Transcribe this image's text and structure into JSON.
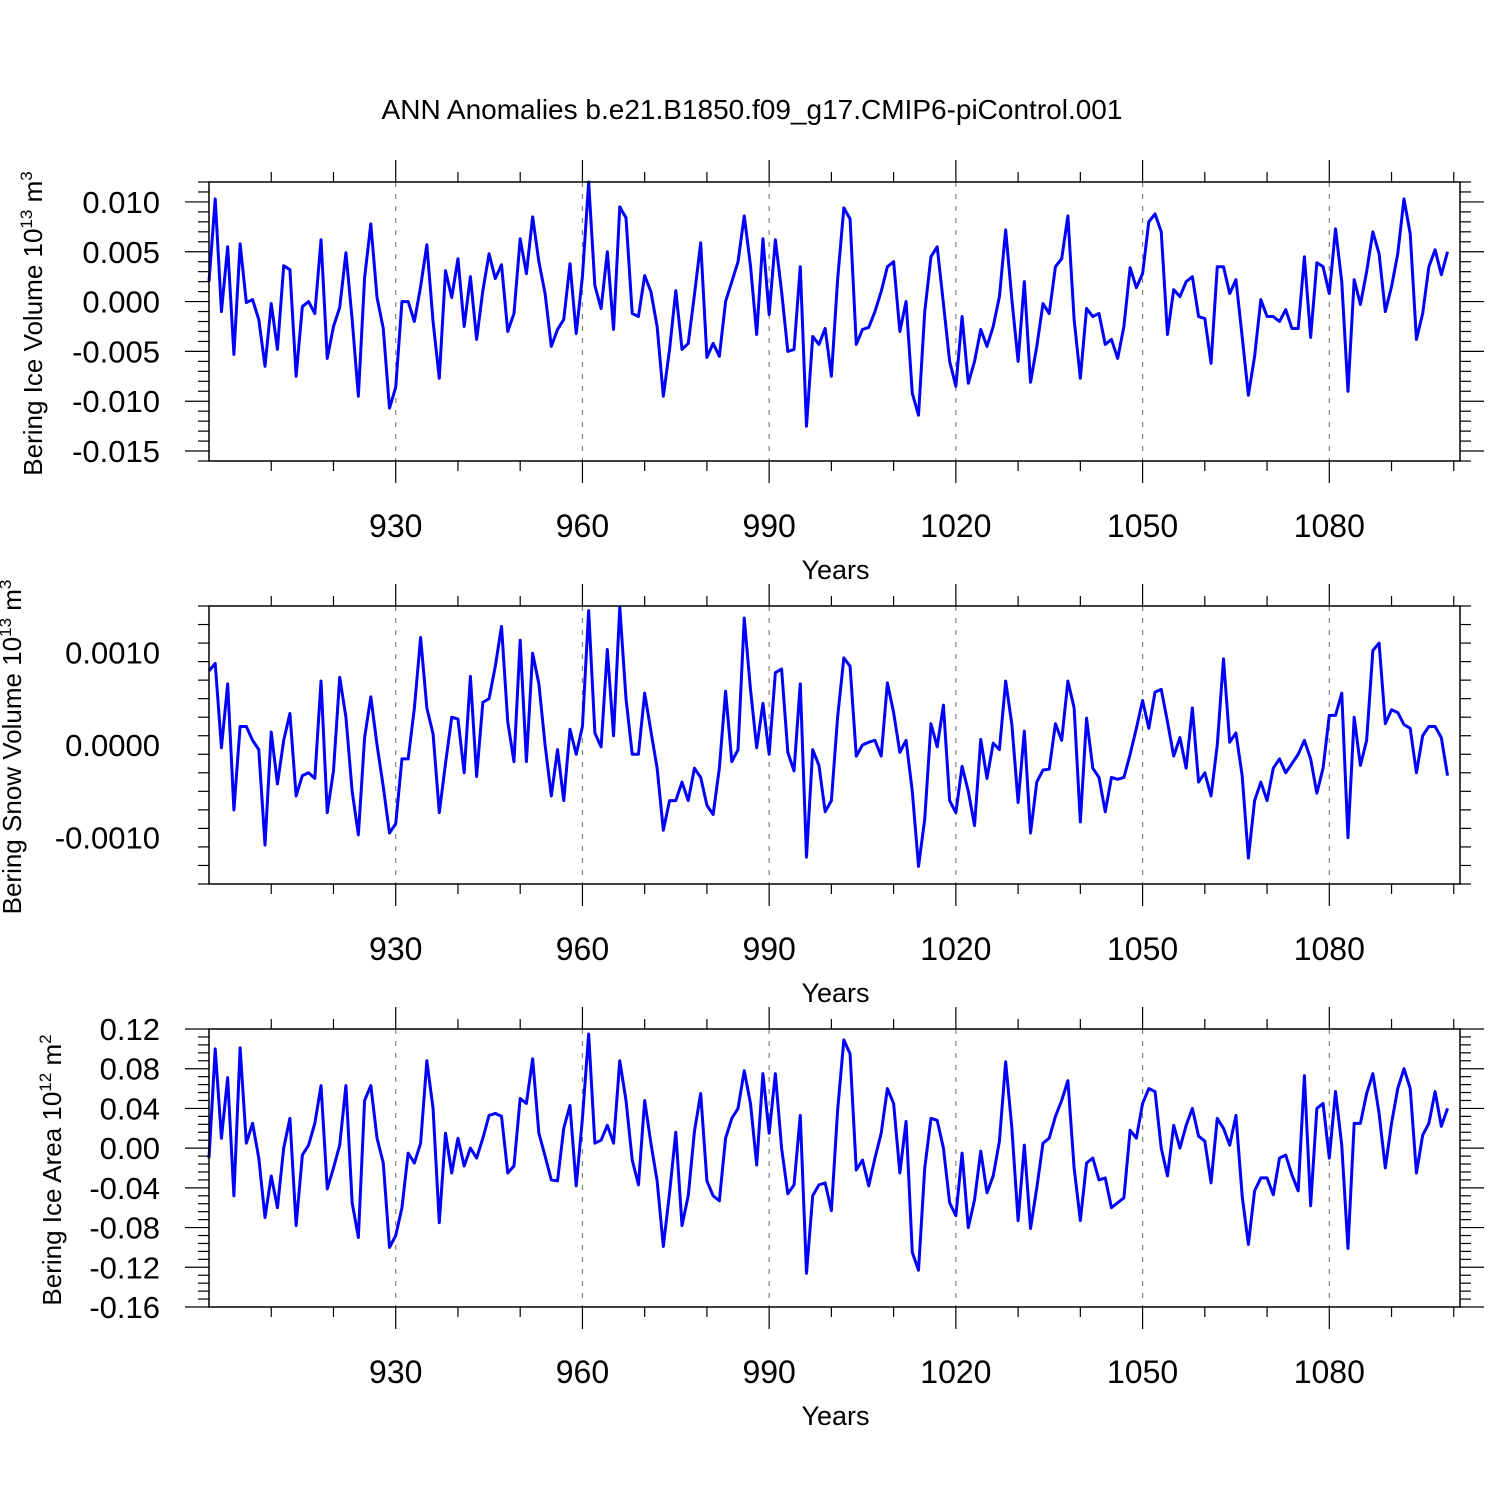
{
  "title": "ANN Anomalies b.e21.B1850.f09_g17.CMIP6-piControl.001",
  "colors": {
    "line": "#0000ff",
    "axis": "#000000",
    "grid": "#808080",
    "background": "#ffffff"
  },
  "chart_data": [
    {
      "type": "line",
      "ylabel_main": "Bering Ice Volume 10",
      "ylabel_exp": "13",
      "ylabel_unit": "m",
      "ylabel_unit_exp": "3",
      "xlabel": "Years",
      "xlim": [
        900,
        1101
      ],
      "ylim": [
        -0.016,
        0.012
      ],
      "xticks": [
        930,
        960,
        990,
        1020,
        1050,
        1080
      ],
      "xtick_labels": [
        "930",
        "960",
        "990",
        "1020",
        "1050",
        "1080"
      ],
      "yticks": [
        0.01,
        0.005,
        0.0,
        -0.005,
        -0.01,
        -0.015
      ],
      "ytick_labels": [
        "0.010",
        "0.005",
        "0.000",
        "-0.005",
        "-0.010",
        "-0.015"
      ],
      "year_start": 900,
      "values": [
        0.002,
        0.0103,
        -0.001,
        0.0055,
        -0.0053,
        0.0058,
        -0.0001,
        0.0002,
        -0.0018,
        -0.0065,
        -0.0002,
        -0.0048,
        0.0036,
        0.0032,
        -0.0075,
        -0.0005,
        0.0,
        -0.0012,
        0.0062,
        -0.0057,
        -0.0025,
        -0.0006,
        0.0049,
        -0.0018,
        -0.0095,
        0.0024,
        0.0078,
        0.0004,
        -0.0027,
        -0.0107,
        -0.0086,
        0.0,
        0.0,
        -0.002,
        0.0015,
        0.0057,
        -0.002,
        -0.0077,
        0.0031,
        0.0004,
        0.0043,
        -0.0025,
        0.0025,
        -0.0038,
        0.0011,
        0.0048,
        0.0023,
        0.0037,
        -0.003,
        -0.0012,
        0.0063,
        0.0028,
        0.0085,
        0.004,
        0.0008,
        -0.0045,
        -0.0028,
        -0.0018,
        0.0038,
        -0.0032,
        0.0025,
        0.012,
        0.0016,
        -0.0007,
        0.005,
        -0.0028,
        0.0095,
        0.0084,
        -0.0012,
        -0.0015,
        0.0026,
        0.001,
        -0.0025,
        -0.0095,
        -0.0048,
        0.0011,
        -0.0048,
        -0.0042,
        0.0007,
        0.0059,
        -0.0056,
        -0.0042,
        -0.0055,
        0.0,
        0.002,
        0.004,
        0.0086,
        0.0036,
        -0.0033,
        0.0063,
        -0.0013,
        0.0062,
        0.001,
        -0.005,
        -0.0048,
        0.0035,
        -0.0125,
        -0.0035,
        -0.0043,
        -0.0027,
        -0.0075,
        0.0022,
        0.0094,
        0.0083,
        -0.0043,
        -0.0028,
        -0.0026,
        -0.001,
        0.001,
        0.0035,
        0.004,
        -0.003,
        0.0,
        -0.0092,
        -0.0114,
        -0.001,
        0.0045,
        0.0055,
        -0.0002,
        -0.006,
        -0.0085,
        -0.0015,
        -0.0082,
        -0.006,
        -0.0028,
        -0.0045,
        -0.0025,
        0.0005,
        0.0072,
        0.0002,
        -0.006,
        0.002,
        -0.0081,
        -0.0045,
        -0.0002,
        -0.0012,
        0.0035,
        0.0043,
        0.0086,
        -0.0018,
        -0.0077,
        -0.0007,
        -0.0015,
        -0.0012,
        -0.0043,
        -0.0038,
        -0.0057,
        -0.0025,
        0.0034,
        0.0014,
        0.0028,
        0.008,
        0.0088,
        0.007,
        -0.0033,
        0.0012,
        0.0005,
        0.002,
        0.0025,
        -0.0015,
        -0.0017,
        -0.0062,
        0.0035,
        0.0035,
        0.0008,
        0.0022,
        -0.0035,
        -0.0094,
        -0.0055,
        0.0002,
        -0.0015,
        -0.0015,
        -0.002,
        -0.0008,
        -0.0027,
        -0.0027,
        0.0045,
        -0.0036,
        0.0039,
        0.0035,
        0.0008,
        0.0073,
        0.002,
        -0.009,
        0.0022,
        -0.0003,
        0.003,
        0.007,
        0.0048,
        -0.001,
        0.0015,
        0.0048,
        0.0103,
        0.0068,
        -0.0038,
        -0.0012,
        0.0035,
        0.0052,
        0.0027,
        0.005
      ]
    },
    {
      "type": "line",
      "ylabel_main": "Bering Snow Volume 10",
      "ylabel_exp": "13",
      "ylabel_unit": "m",
      "ylabel_unit_exp": "3",
      "xlabel": "Years",
      "xlim": [
        900,
        1101
      ],
      "ylim": [
        -0.0015,
        0.0015
      ],
      "xticks": [
        930,
        960,
        990,
        1020,
        1050,
        1080
      ],
      "xtick_labels": [
        "930",
        "960",
        "990",
        "1020",
        "1050",
        "1080"
      ],
      "yticks": [
        0.001,
        0.0,
        -0.001
      ],
      "ytick_labels": [
        "0.0010",
        "0.0000",
        "-0.0010"
      ],
      "year_start": 900,
      "values": [
        0.0008,
        0.00088,
        -3e-05,
        0.00066,
        -0.0007,
        0.0002,
        0.0002,
        5e-05,
        -5e-05,
        -0.00108,
        0.00014,
        -0.00042,
        5e-05,
        0.00034,
        -0.00055,
        -0.00033,
        -0.0003,
        -0.00036,
        0.00069,
        -0.00073,
        -0.00028,
        0.00073,
        0.0003,
        -0.0005,
        -0.00097,
        8e-05,
        0.00052,
        0.0,
        -0.00045,
        -0.00095,
        -0.00085,
        -0.00015,
        -0.00015,
        0.0004,
        0.00116,
        0.0004,
        0.00012,
        -0.00073,
        -0.0002,
        0.0003,
        0.00028,
        -0.0003,
        0.00074,
        -0.00034,
        0.00046,
        0.0005,
        0.00085,
        0.00128,
        0.00025,
        -0.00018,
        0.00113,
        -0.00018,
        0.00099,
        0.00066,
        0.0,
        -0.00055,
        -5e-05,
        -0.0006,
        0.00017,
        -0.0001,
        0.0002,
        0.00145,
        0.00013,
        -2e-05,
        0.00103,
        0.0001,
        0.00149,
        0.0005,
        -0.0001,
        -0.0001,
        0.00056,
        0.00015,
        -0.00025,
        -0.00092,
        -0.0006,
        -0.0006,
        -0.0004,
        -0.0006,
        -0.00025,
        -0.00035,
        -0.00065,
        -0.00075,
        -0.00025,
        0.00058,
        -0.00018,
        -5e-05,
        0.00137,
        0.0006,
        -3e-05,
        0.00045,
        -0.0001,
        0.00078,
        0.00082,
        -8e-05,
        -0.00028,
        0.00066,
        -0.00121,
        -5e-05,
        -0.00022,
        -0.00072,
        -0.0006,
        0.0003,
        0.00094,
        0.00085,
        -0.00012,
        0.0,
        3e-05,
        5e-05,
        -0.00012,
        0.00067,
        0.00035,
        -8e-05,
        5e-05,
        -0.0005,
        -0.00131,
        -0.0008,
        0.00023,
        -2e-05,
        0.00043,
        -0.0006,
        -0.00073,
        -0.00023,
        -0.0005,
        -0.00087,
        6e-05,
        -0.00036,
        2e-05,
        -5e-05,
        0.00069,
        0.00022,
        -0.00062,
        0.00015,
        -0.00095,
        -0.0004,
        -0.00027,
        -0.00026,
        0.00023,
        5e-05,
        0.00069,
        0.0004,
        -0.00083,
        0.00029,
        -0.00025,
        -0.00035,
        -0.00072,
        -0.00035,
        -0.00037,
        -0.00035,
        -0.0001,
        0.00018,
        0.00048,
        0.00018,
        0.00057,
        0.0006,
        0.00025,
        -0.00012,
        8e-05,
        -0.00025,
        0.0004,
        -0.0004,
        -0.0003,
        -0.00055,
        0.0,
        0.00093,
        3e-05,
        0.00013,
        -0.00033,
        -0.00122,
        -0.0006,
        -0.0004,
        -0.0006,
        -0.00025,
        -0.00015,
        -0.0003,
        -0.0002,
        -0.0001,
        5e-05,
        -0.00015,
        -0.00052,
        -0.00025,
        0.00032,
        0.00032,
        0.00056,
        -0.001,
        0.0003,
        -0.00022,
        5e-05,
        0.00102,
        0.0011,
        0.00023,
        0.00038,
        0.00035,
        0.00022,
        0.00018,
        -0.0003,
        0.0001,
        0.0002,
        0.0002,
        8e-05,
        -0.00033
      ]
    },
    {
      "type": "line",
      "ylabel_main": "Bering Ice Area 10",
      "ylabel_exp": "12",
      "ylabel_unit": "m",
      "ylabel_unit_exp": "2",
      "xlabel": "Years",
      "xlim": [
        900,
        1101
      ],
      "ylim": [
        -0.16,
        0.12
      ],
      "xticks": [
        930,
        960,
        990,
        1020,
        1050,
        1080
      ],
      "xtick_labels": [
        "930",
        "960",
        "990",
        "1020",
        "1050",
        "1080"
      ],
      "yticks": [
        0.12,
        0.08,
        0.04,
        0.0,
        -0.04,
        -0.08,
        -0.12,
        -0.16
      ],
      "ytick_labels": [
        "0.12",
        "0.08",
        "0.04",
        "0.00",
        "-0.04",
        "-0.08",
        "-0.12",
        "-0.16"
      ],
      "year_start": 900,
      "values": [
        -0.01,
        0.1,
        0.01,
        0.071,
        -0.048,
        0.101,
        0.005,
        0.025,
        -0.01,
        -0.07,
        -0.028,
        -0.06,
        0.0,
        0.03,
        -0.078,
        -0.007,
        0.003,
        0.025,
        0.063,
        -0.041,
        -0.02,
        0.003,
        0.063,
        -0.055,
        -0.09,
        0.048,
        0.063,
        0.01,
        -0.015,
        -0.1,
        -0.088,
        -0.06,
        -0.005,
        -0.015,
        0.005,
        0.088,
        0.04,
        -0.075,
        0.015,
        -0.025,
        0.01,
        -0.018,
        0.0,
        -0.01,
        0.01,
        0.033,
        0.035,
        0.032,
        -0.025,
        -0.018,
        0.05,
        0.045,
        0.09,
        0.015,
        -0.008,
        -0.032,
        -0.033,
        0.02,
        0.043,
        -0.038,
        0.03,
        0.115,
        0.005,
        0.008,
        0.023,
        0.005,
        0.088,
        0.048,
        -0.012,
        -0.037,
        0.048,
        0.005,
        -0.033,
        -0.099,
        -0.045,
        0.016,
        -0.078,
        -0.048,
        0.017,
        0.055,
        -0.033,
        -0.048,
        -0.053,
        0.01,
        0.03,
        0.04,
        0.078,
        0.045,
        -0.017,
        0.075,
        0.015,
        0.075,
        0.0,
        -0.046,
        -0.037,
        0.033,
        -0.126,
        -0.048,
        -0.037,
        -0.035,
        -0.063,
        0.038,
        0.109,
        0.095,
        -0.022,
        -0.012,
        -0.038,
        -0.01,
        0.015,
        0.06,
        0.045,
        -0.025,
        0.027,
        -0.105,
        -0.123,
        -0.02,
        0.03,
        0.028,
        0.0,
        -0.055,
        -0.068,
        -0.005,
        -0.08,
        -0.052,
        -0.003,
        -0.045,
        -0.028,
        0.007,
        0.087,
        0.02,
        -0.073,
        0.003,
        -0.081,
        -0.04,
        0.005,
        0.01,
        0.032,
        0.048,
        0.068,
        -0.02,
        -0.073,
        -0.015,
        -0.01,
        -0.032,
        -0.03,
        -0.06,
        -0.055,
        -0.05,
        0.018,
        0.01,
        0.045,
        0.06,
        0.057,
        0.0,
        -0.028,
        0.023,
        0.0,
        0.023,
        0.04,
        0.012,
        0.007,
        -0.035,
        0.03,
        0.02,
        0.003,
        0.033,
        -0.048,
        -0.097,
        -0.043,
        -0.03,
        -0.03,
        -0.047,
        -0.01,
        -0.007,
        -0.027,
        -0.043,
        0.073,
        -0.058,
        0.04,
        0.045,
        -0.01,
        0.057,
        0.003,
        -0.101,
        0.025,
        0.025,
        0.055,
        0.075,
        0.035,
        -0.02,
        0.025,
        0.06,
        0.08,
        0.06,
        -0.025,
        0.013,
        0.025,
        0.057,
        0.022,
        0.04
      ]
    }
  ]
}
